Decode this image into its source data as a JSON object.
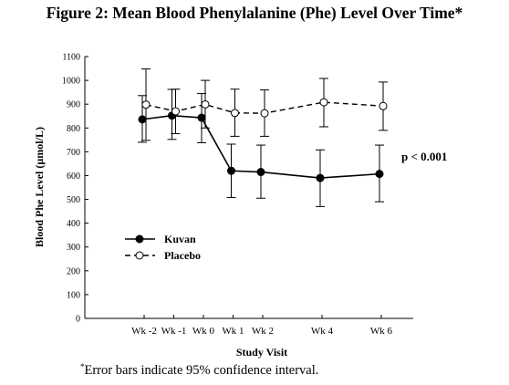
{
  "figure_title": "Figure 2:  Mean Blood Phenylalanine (Phe) Level Over Time*",
  "footnote": {
    "marker": "*",
    "text": "Error bars indicate 95% confidence interval."
  },
  "annotation": "p < 0.001",
  "chart_data": {
    "type": "line",
    "title": "Mean Blood Phenylalanine (Phe) Level Over Time",
    "xlabel": "Study Visit",
    "ylabel": "Blood Phe Level (µmol/L)",
    "ylim": [
      0,
      1100
    ],
    "yticks": [
      0,
      100,
      200,
      300,
      400,
      500,
      600,
      700,
      800,
      900,
      1000,
      1100
    ],
    "x_weeks": [
      -2,
      -1,
      0,
      1,
      2,
      4,
      6
    ],
    "categories": [
      "Wk -2",
      "Wk -1",
      "Wk 0",
      "Wk 1",
      "Wk 2",
      "Wk 4",
      "Wk 6"
    ],
    "legend_position": "left-middle",
    "series": [
      {
        "name": "Kuvan",
        "marker": "filled-circle",
        "line": "solid",
        "values": [
          836,
          852,
          843,
          620,
          615,
          590,
          607
        ],
        "ci_lower": [
          740,
          752,
          738,
          508,
          505,
          470,
          490
        ],
        "ci_upper": [
          936,
          962,
          945,
          732,
          728,
          708,
          728
        ]
      },
      {
        "name": "Placebo",
        "marker": "open-circle",
        "line": "dashed",
        "values": [
          898,
          870,
          899,
          863,
          862,
          908,
          892
        ],
        "ci_lower": [
          748,
          776,
          800,
          765,
          765,
          805,
          790
        ],
        "ci_upper": [
          1048,
          963,
          1000,
          963,
          960,
          1008,
          993
        ]
      }
    ]
  }
}
